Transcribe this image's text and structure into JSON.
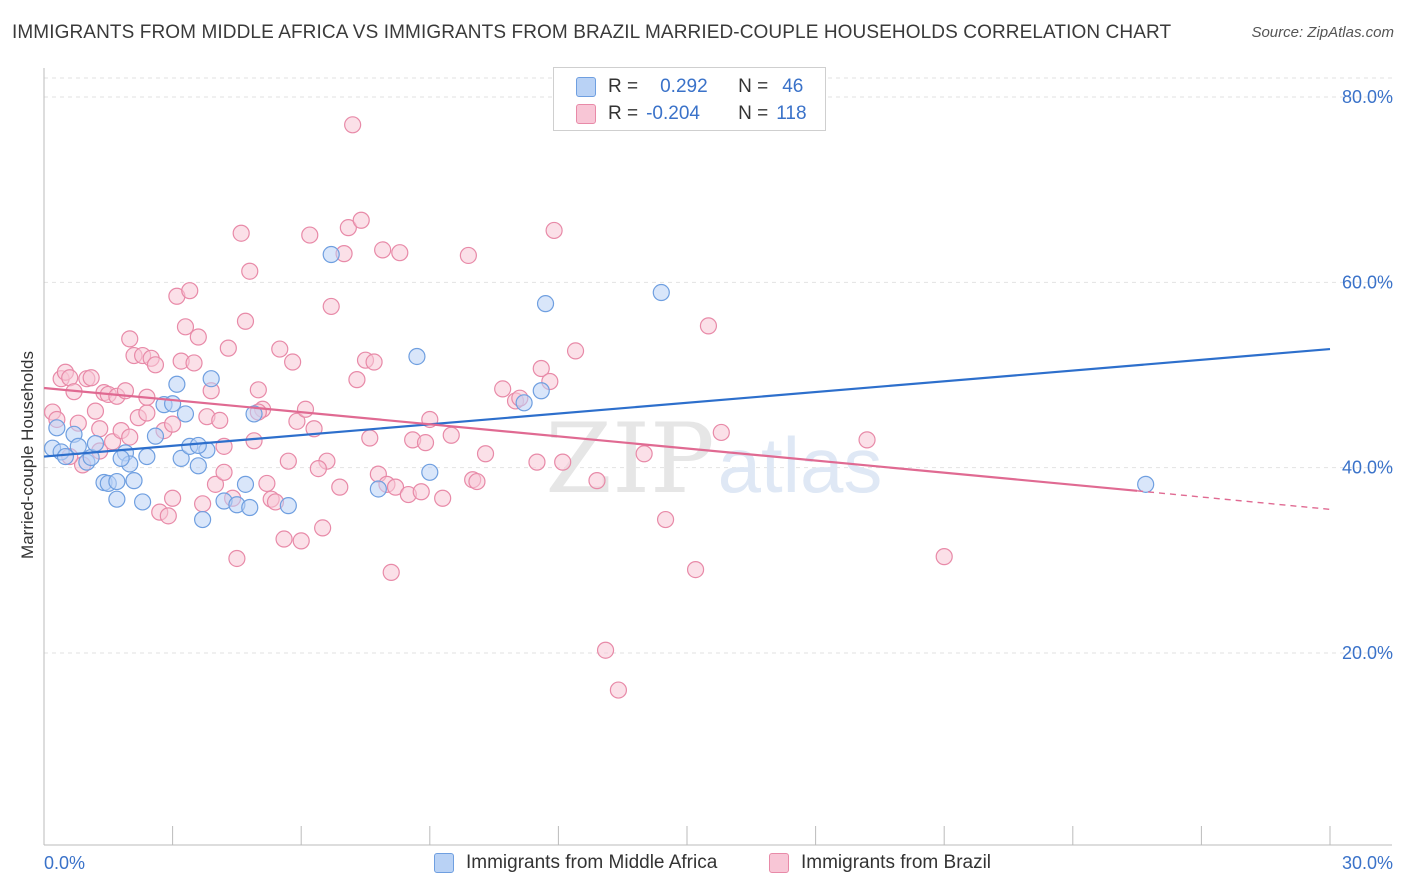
{
  "title": "IMMIGRANTS FROM MIDDLE AFRICA VS IMMIGRANTS FROM BRAZIL MARRIED-COUPLE HOUSEHOLDS CORRELATION CHART",
  "source": "Source: ZipAtlas.com",
  "watermark": {
    "zip": "ZIP",
    "atlas": "atlas"
  },
  "legend_top": {
    "rows": [
      {
        "r_label": "R =",
        "r_value": "0.292",
        "n_label": "N =",
        "n_value": "46"
      },
      {
        "r_label": "R =",
        "r_value": "-0.204",
        "n_label": "N =",
        "n_value": "118"
      }
    ]
  },
  "colors": {
    "blue": "#6f9fe0",
    "blue_fill": "#b9d2f5",
    "blue_line": "#2d6fcc",
    "pink": "#e88aa8",
    "pink_fill": "#f8c6d6",
    "pink_line": "#e06a92",
    "axis_label": "#3a72c9"
  },
  "chart_data": {
    "type": "scatter",
    "title": "IMMIGRANTS FROM MIDDLE AFRICA VS IMMIGRANTS FROM BRAZIL MARRIED-COUPLE HOUSEHOLDS CORRELATION CHART",
    "xlabel": "",
    "ylabel": "Married-couple Households",
    "xlim": [
      0,
      30
    ],
    "ylim": [
      0,
      85
    ],
    "x_tick_labels": [
      "0.0%",
      "30.0%"
    ],
    "y_tick_labels": [
      "20.0%",
      "40.0%",
      "60.0%",
      "80.0%"
    ],
    "y_ticks": [
      20,
      40,
      60,
      80
    ],
    "grid": true,
    "legend_position": "bottom",
    "series": [
      {
        "name": "Immigrants from Middle Africa",
        "color": "#6f9fe0",
        "trend": {
          "x": [
            0,
            30
          ],
          "y": [
            41.2,
            52.8
          ]
        },
        "points": [
          [
            0.2,
            42.1
          ],
          [
            0.4,
            41.7
          ],
          [
            0.5,
            41.2
          ],
          [
            0.7,
            43.6
          ],
          [
            0.8,
            42.3
          ],
          [
            1.0,
            40.6
          ],
          [
            1.1,
            41.1
          ],
          [
            1.2,
            42.6
          ],
          [
            1.4,
            38.4
          ],
          [
            1.5,
            38.3
          ],
          [
            1.7,
            38.5
          ],
          [
            1.7,
            36.6
          ],
          [
            1.9,
            41.6
          ],
          [
            2.0,
            40.4
          ],
          [
            2.1,
            38.6
          ],
          [
            2.3,
            36.3
          ],
          [
            2.4,
            41.2
          ],
          [
            2.6,
            43.4
          ],
          [
            2.8,
            46.8
          ],
          [
            3.0,
            46.9
          ],
          [
            3.1,
            49.0
          ],
          [
            3.2,
            41.0
          ],
          [
            3.3,
            45.8
          ],
          [
            3.4,
            42.3
          ],
          [
            3.6,
            40.2
          ],
          [
            3.7,
            34.4
          ],
          [
            3.8,
            41.9
          ],
          [
            3.9,
            49.6
          ],
          [
            4.2,
            36.4
          ],
          [
            4.5,
            36.0
          ],
          [
            4.7,
            38.2
          ],
          [
            4.8,
            35.7
          ],
          [
            4.9,
            45.8
          ],
          [
            5.7,
            35.9
          ],
          [
            6.7,
            63.0
          ],
          [
            7.8,
            37.7
          ],
          [
            8.7,
            52.0
          ],
          [
            9.0,
            39.5
          ],
          [
            11.2,
            47.0
          ],
          [
            11.6,
            48.3
          ],
          [
            11.7,
            57.7
          ],
          [
            14.4,
            58.9
          ],
          [
            25.7,
            38.2
          ],
          [
            0.3,
            44.3
          ],
          [
            1.8,
            41.0
          ],
          [
            3.6,
            42.4
          ]
        ]
      },
      {
        "name": "Immigrants from Brazil",
        "color": "#e88aa8",
        "trend": {
          "x": [
            0,
            25.5
          ],
          "y": [
            48.6,
            37.5
          ]
        },
        "trend_dashed": {
          "x": [
            25.5,
            30
          ],
          "y": [
            37.5,
            35.5
          ]
        },
        "points": [
          [
            0.2,
            46.0
          ],
          [
            0.3,
            45.2
          ],
          [
            0.4,
            49.6
          ],
          [
            0.5,
            50.3
          ],
          [
            0.6,
            49.7
          ],
          [
            0.7,
            48.2
          ],
          [
            0.8,
            44.8
          ],
          [
            0.9,
            40.3
          ],
          [
            1.0,
            49.6
          ],
          [
            1.1,
            49.7
          ],
          [
            1.2,
            46.1
          ],
          [
            1.3,
            44.2
          ],
          [
            1.4,
            48.1
          ],
          [
            1.5,
            47.9
          ],
          [
            1.6,
            42.8
          ],
          [
            1.7,
            47.7
          ],
          [
            1.8,
            44.0
          ],
          [
            1.9,
            48.3
          ],
          [
            2.0,
            43.3
          ],
          [
            2.0,
            53.9
          ],
          [
            2.1,
            52.1
          ],
          [
            2.2,
            45.4
          ],
          [
            2.3,
            52.1
          ],
          [
            2.4,
            45.9
          ],
          [
            2.5,
            51.8
          ],
          [
            2.6,
            51.1
          ],
          [
            2.7,
            35.2
          ],
          [
            2.8,
            44.0
          ],
          [
            2.9,
            34.8
          ],
          [
            3.0,
            36.7
          ],
          [
            3.1,
            58.5
          ],
          [
            3.2,
            51.5
          ],
          [
            3.3,
            55.2
          ],
          [
            3.4,
            59.1
          ],
          [
            3.5,
            51.3
          ],
          [
            3.6,
            54.1
          ],
          [
            3.7,
            36.1
          ],
          [
            3.8,
            45.5
          ],
          [
            3.9,
            48.3
          ],
          [
            4.0,
            38.2
          ],
          [
            4.1,
            45.1
          ],
          [
            4.2,
            39.5
          ],
          [
            4.3,
            52.9
          ],
          [
            4.4,
            36.7
          ],
          [
            4.5,
            30.2
          ],
          [
            4.6,
            65.3
          ],
          [
            4.7,
            55.8
          ],
          [
            4.8,
            61.2
          ],
          [
            4.9,
            42.9
          ],
          [
            5.0,
            48.4
          ],
          [
            5.1,
            46.3
          ],
          [
            5.2,
            38.3
          ],
          [
            5.3,
            36.6
          ],
          [
            5.4,
            36.3
          ],
          [
            5.5,
            52.8
          ],
          [
            5.6,
            32.3
          ],
          [
            5.7,
            40.7
          ],
          [
            5.8,
            51.4
          ],
          [
            5.9,
            45.0
          ],
          [
            6.0,
            32.1
          ],
          [
            6.1,
            46.3
          ],
          [
            6.2,
            65.1
          ],
          [
            6.3,
            44.2
          ],
          [
            6.5,
            33.5
          ],
          [
            6.6,
            40.7
          ],
          [
            6.7,
            57.4
          ],
          [
            6.9,
            37.9
          ],
          [
            7.0,
            63.1
          ],
          [
            7.1,
            65.9
          ],
          [
            7.2,
            77.0
          ],
          [
            7.3,
            49.5
          ],
          [
            7.4,
            66.7
          ],
          [
            7.5,
            51.6
          ],
          [
            7.6,
            43.2
          ],
          [
            7.7,
            51.4
          ],
          [
            7.8,
            39.3
          ],
          [
            7.9,
            63.5
          ],
          [
            8.0,
            38.2
          ],
          [
            8.1,
            28.7
          ],
          [
            8.2,
            37.9
          ],
          [
            8.3,
            63.2
          ],
          [
            8.5,
            37.1
          ],
          [
            8.6,
            43.0
          ],
          [
            8.8,
            37.4
          ],
          [
            8.9,
            42.7
          ],
          [
            9.0,
            45.2
          ],
          [
            9.3,
            36.7
          ],
          [
            9.9,
            62.9
          ],
          [
            10.0,
            38.7
          ],
          [
            10.1,
            38.5
          ],
          [
            10.3,
            41.5
          ],
          [
            10.7,
            48.5
          ],
          [
            11.0,
            47.2
          ],
          [
            11.1,
            47.5
          ],
          [
            11.5,
            40.6
          ],
          [
            11.6,
            50.7
          ],
          [
            11.8,
            49.3
          ],
          [
            11.9,
            65.6
          ],
          [
            12.1,
            40.6
          ],
          [
            12.4,
            52.6
          ],
          [
            12.9,
            38.6
          ],
          [
            13.1,
            20.3
          ],
          [
            13.4,
            16.0
          ],
          [
            14.0,
            41.5
          ],
          [
            14.5,
            34.4
          ],
          [
            15.2,
            29.0
          ],
          [
            15.5,
            55.3
          ],
          [
            15.8,
            43.8
          ],
          [
            19.2,
            43.0
          ],
          [
            21.0,
            30.4
          ],
          [
            0.6,
            41.2
          ],
          [
            1.3,
            41.8
          ],
          [
            2.4,
            47.6
          ],
          [
            3.0,
            44.7
          ],
          [
            4.2,
            42.3
          ],
          [
            5.0,
            46.0
          ],
          [
            6.4,
            39.9
          ],
          [
            9.5,
            43.5
          ]
        ]
      }
    ]
  },
  "bottom_legend": [
    {
      "label": "Immigrants from Middle Africa"
    },
    {
      "label": "Immigrants from Brazil"
    }
  ]
}
